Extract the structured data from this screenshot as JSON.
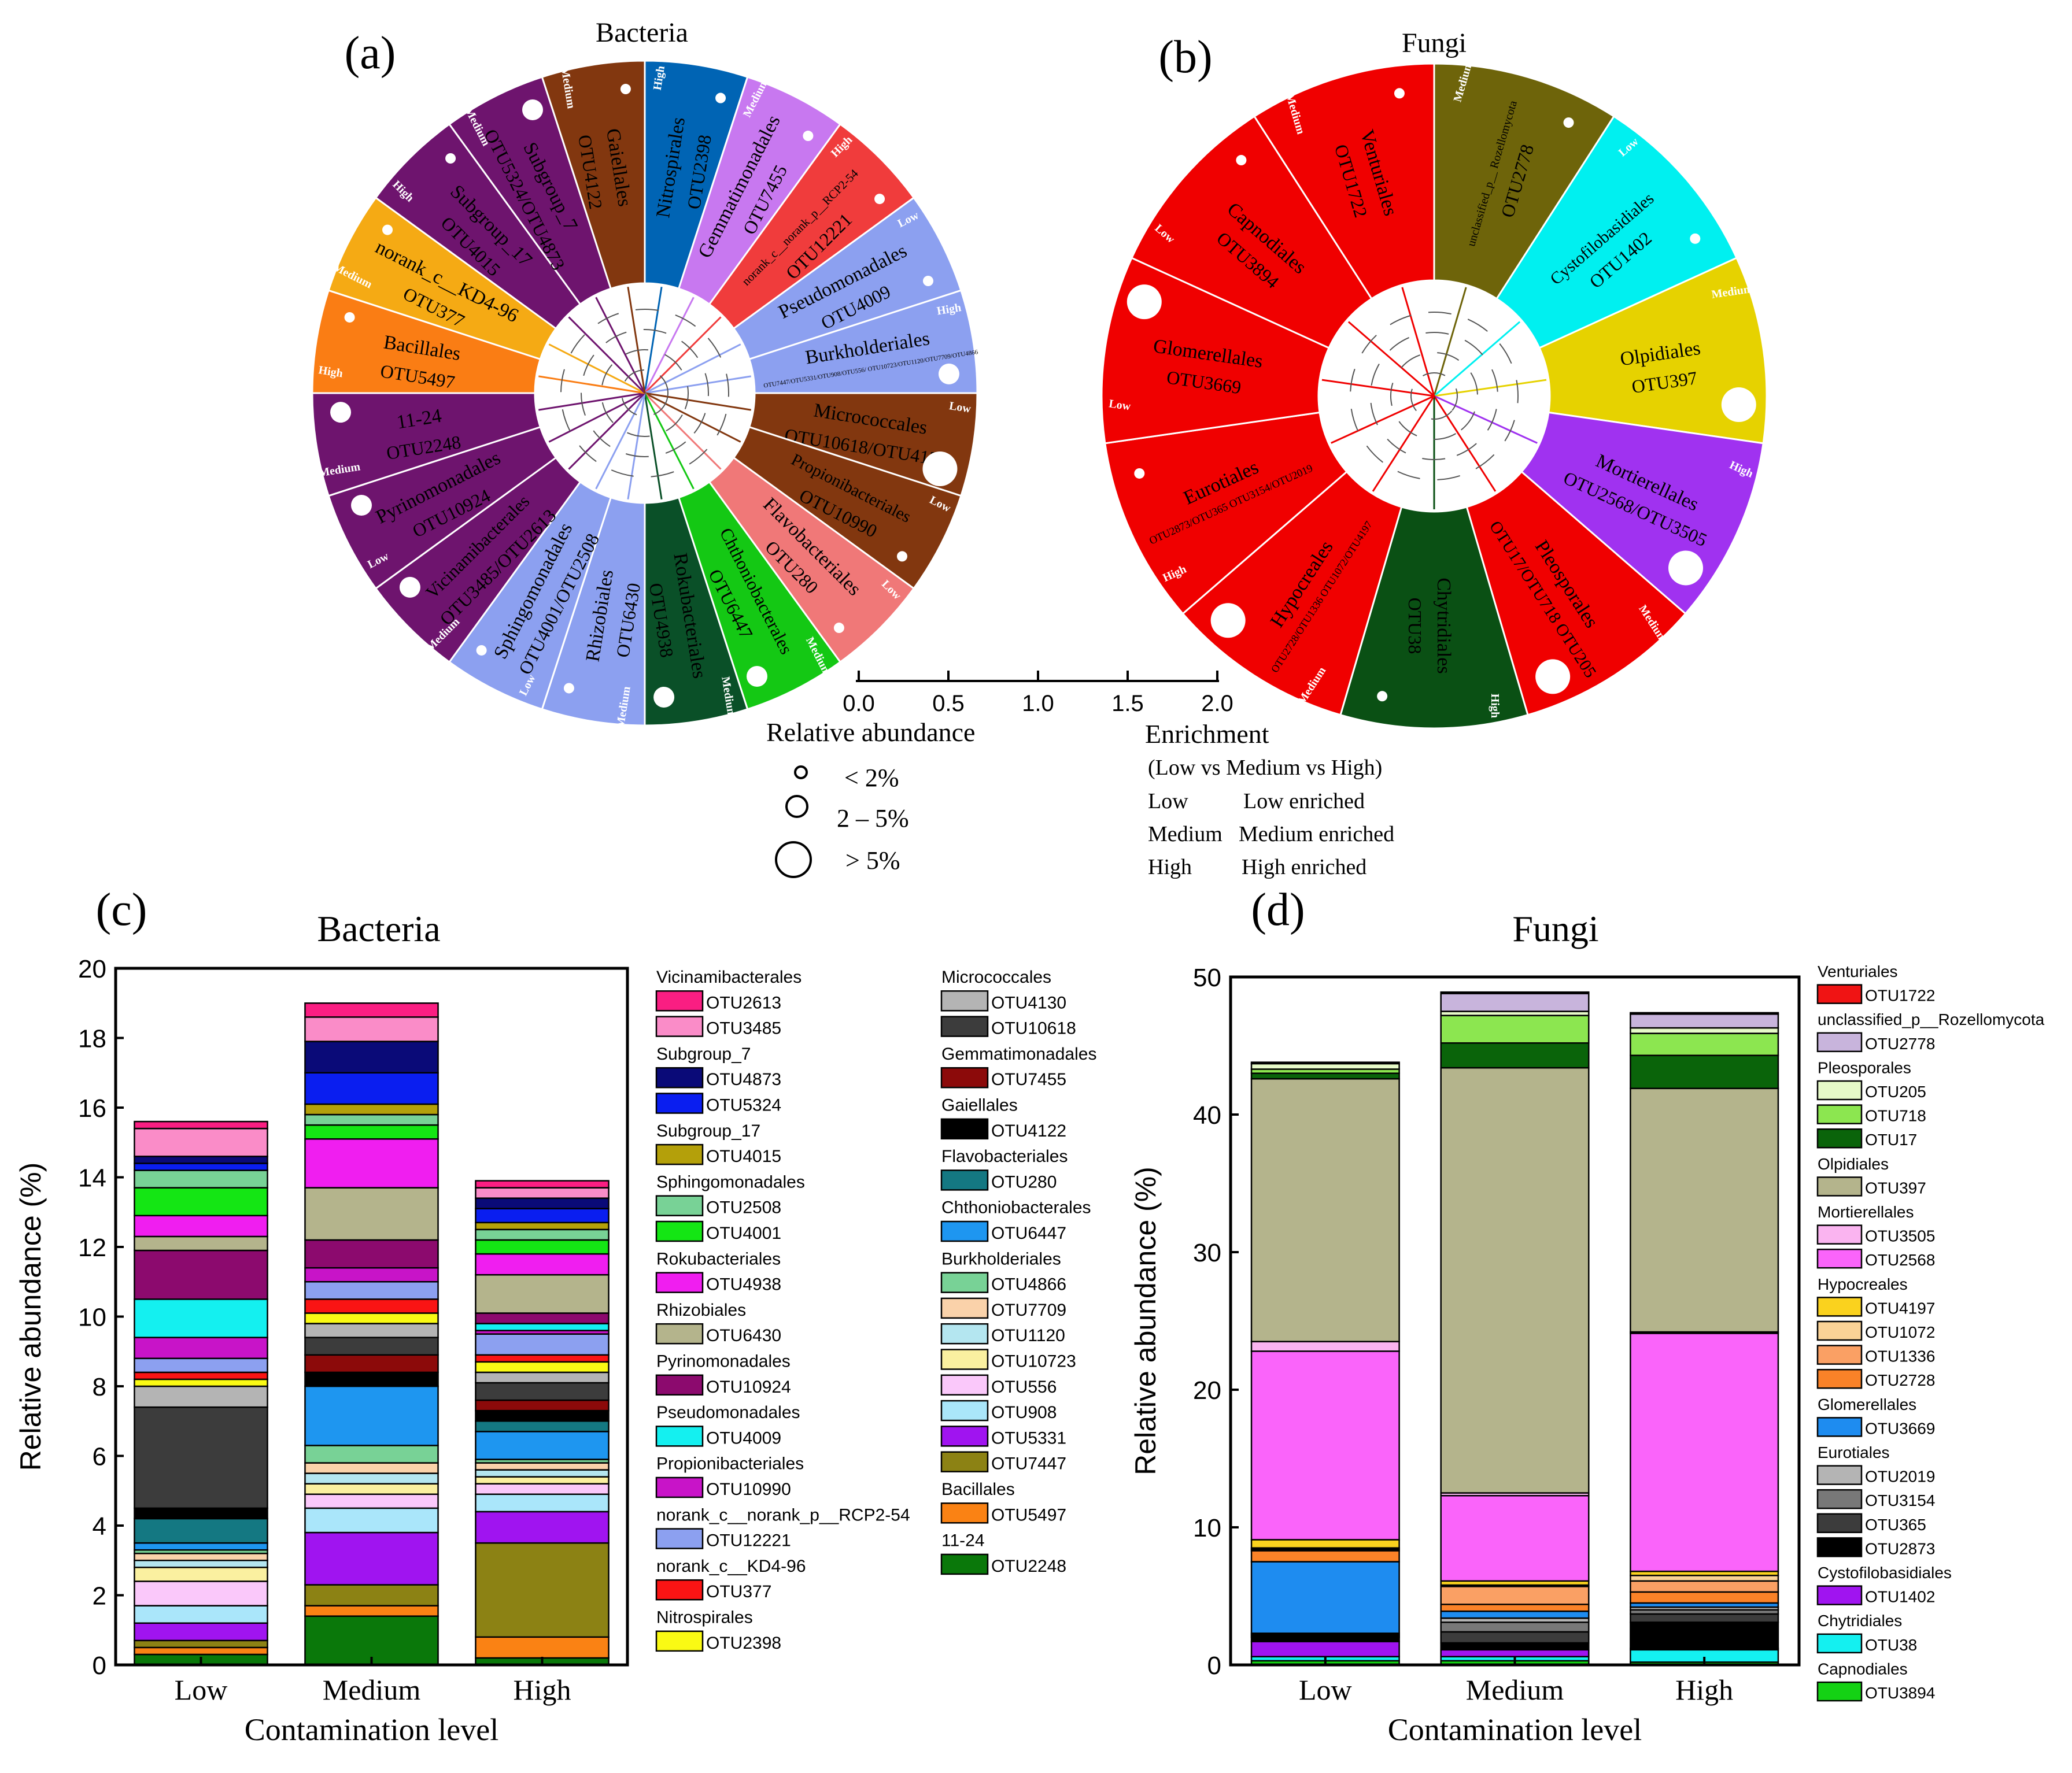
{
  "panels": {
    "a": {
      "label": "(a)",
      "title": "Bacteria"
    },
    "b": {
      "label": "(b)",
      "title": "Fungi"
    },
    "c": {
      "label": "(c)",
      "title": "Bacteria"
    },
    "d": {
      "label": "(d)",
      "title": "Fungi"
    }
  },
  "tree_scale": {
    "ticks": [
      "0.0",
      "0.5",
      "1.0",
      "1.5",
      "2.0"
    ]
  },
  "size_legend": {
    "title": "Relative abundance",
    "items": [
      "< 2%",
      "2 – 5%",
      "> 5%"
    ]
  },
  "enrichment_legend": {
    "title": "Enrichment",
    "subtitle": "(Low vs Medium vs High)",
    "rows": [
      {
        "key": "Low",
        "desc": "Low enriched"
      },
      {
        "key": "Medium",
        "desc": "Medium enriched"
      },
      {
        "key": "High",
        "desc": "High enriched"
      }
    ]
  },
  "circle_bacteria": [
    {
      "order": "Nitrospirales",
      "otu": "OTU2398",
      "enr": "High",
      "size": 1,
      "color": "#0064b4"
    },
    {
      "order": "Gemmatimonadales",
      "otu": "OTU7455",
      "enr": "Medium",
      "size": 1,
      "color": "#c878f0"
    },
    {
      "order": "norank_c__norank_p__RCP2-54",
      "otu": "OTU12221",
      "enr": "High",
      "size": 1,
      "color": "#f03c3c"
    },
    {
      "order": "Pseudomonadales",
      "otu": "OTU4009",
      "enr": "Low",
      "size": 1,
      "color": "#8ca0f0"
    },
    {
      "order": "Burkholderiales",
      "otu": "OTU7447/OTU5331/OTU908/OTU556/ OTU10723/OTU1120/OTU7709/OTU4866",
      "enr": "High",
      "size": 2,
      "color": "#8ca0f0"
    },
    {
      "order": "Micrococcales",
      "otu": "OTU10618/OTU4130",
      "enr": "Low",
      "size": 3,
      "color": "#82370f"
    },
    {
      "order": "Propionibacteriales",
      "otu": "OTU10990",
      "enr": "Low",
      "size": 1,
      "color": "#82370f"
    },
    {
      "order": "Flavobacteriales",
      "otu": "OTU280",
      "enr": "Low",
      "size": 1,
      "color": "#f07878"
    },
    {
      "order": "Chthoniobacterales",
      "otu": "OTU6447",
      "enr": "Medium",
      "size": 2,
      "color": "#14c814"
    },
    {
      "order": "Rokubacteriales",
      "otu": "OTU4938",
      "enr": "Medium",
      "size": 2,
      "color": "#0a5028"
    },
    {
      "order": "Rhizobiales",
      "otu": "OTU6430",
      "enr": "Medium",
      "size": 1,
      "color": "#8ca0f0"
    },
    {
      "order": "Sphingomonadales",
      "otu": "OTU4001/OTU2508",
      "enr": "Low",
      "size": 1,
      "color": "#8ca0f0"
    },
    {
      "order": "Vicinamibacterales",
      "otu": "OTU3485/OTU2613",
      "enr": "Medium",
      "size": 2,
      "color": "#6e146e"
    },
    {
      "order": "Pyrinomonadales",
      "otu": "OTU10924",
      "enr": "Low",
      "size": 2,
      "color": "#6e146e"
    },
    {
      "order": "11-24",
      "otu": "OTU2248",
      "enr": "Medium",
      "size": 2,
      "color": "#6e146e"
    },
    {
      "order": "Bacillales",
      "otu": "OTU5497",
      "enr": "High",
      "size": 1,
      "color": "#fa7d14"
    },
    {
      "order": "norank_c__KD4-96",
      "otu": "OTU377",
      "enr": "Medium",
      "size": 1,
      "color": "#f5aa14"
    },
    {
      "order": "Subgroup_17",
      "otu": "OTU4015",
      "enr": "High",
      "size": 1,
      "color": "#6e146e"
    },
    {
      "order": "Subgroup_7",
      "otu": "OTU5324/OTU4873",
      "enr": "Medium",
      "size": 2,
      "color": "#6e146e"
    },
    {
      "order": "Gaiellales",
      "otu": "OTU4122",
      "enr": "Medium",
      "size": 1,
      "color": "#82370f"
    }
  ],
  "circle_fungi": [
    {
      "order": "unclassified_p__ Rozellomycota",
      "otu": "OTU2778",
      "enr": "Medium",
      "size": 1,
      "color": "#6e640a"
    },
    {
      "order": "Cystofilobasidiales",
      "otu": "OTU1402",
      "enr": "Low",
      "size": 1,
      "color": "#00f0f0"
    },
    {
      "order": "Olpidiales",
      "otu": "OTU397",
      "enr": "Medium",
      "size": 3,
      "color": "#e6d200"
    },
    {
      "order": "Mortierellales",
      "otu": "OTU2568/OTU3505",
      "enr": "High",
      "size": 3,
      "color": "#a032f0"
    },
    {
      "order": "Pleosporales",
      "otu": "OTU17/OTU718 OTU205",
      "enr": "Medium",
      "size": 3,
      "color": "#f00000"
    },
    {
      "order": "Chytridiales",
      "otu": "OTU38",
      "enr": "High",
      "size": 1,
      "color": "#0a5014"
    },
    {
      "order": "Hypocreales",
      "otu": "OTU2728/OTU1336 OTU1072/OTU4197",
      "enr": "Medium",
      "size": 3,
      "color": "#f00000"
    },
    {
      "order": "Eurotiales",
      "otu": "OTU2873/OTU365 OTU3154/OTU2019",
      "enr": "High",
      "size": 1,
      "color": "#f00000"
    },
    {
      "order": "Glomerellales",
      "otu": "OTU3669",
      "enr": "Low",
      "size": 3,
      "color": "#f00000"
    },
    {
      "order": "Capnodiales",
      "otu": "OTU3894",
      "enr": "Low",
      "size": 1,
      "color": "#f00000"
    },
    {
      "order": "Venturiales",
      "otu": "OTU1722",
      "enr": "Medium",
      "size": 1,
      "color": "#f00000"
    }
  ],
  "chart_data": [
    {
      "type": "bar",
      "id": "c",
      "title": "Bacteria",
      "xlabel": "Contamination level",
      "ylabel": "Relative abundance (%)",
      "categories": [
        "Low",
        "Medium",
        "High"
      ],
      "ylim": [
        0,
        20
      ],
      "yticks": [
        0,
        2,
        4,
        6,
        8,
        10,
        12,
        14,
        16,
        18,
        20
      ],
      "series": [
        {
          "name": "OTU2248",
          "color": "#0a780a",
          "values": [
            0.3,
            1.4,
            0.2
          ]
        },
        {
          "name": "OTU5497",
          "color": "#fa8214",
          "values": [
            0.2,
            0.3,
            0.6
          ]
        },
        {
          "name": "OTU7447",
          "color": "#8c8214",
          "values": [
            0.2,
            0.6,
            2.7
          ]
        },
        {
          "name": "OTU5331",
          "color": "#a014f0",
          "values": [
            0.5,
            1.5,
            0.9
          ]
        },
        {
          "name": "OTU908",
          "color": "#aae6fa",
          "values": [
            0.5,
            0.7,
            0.5
          ]
        },
        {
          "name": "OTU556",
          "color": "#fac8fa",
          "values": [
            0.7,
            0.4,
            0.3
          ]
        },
        {
          "name": "OTU10723",
          "color": "#faf0a0",
          "values": [
            0.4,
            0.3,
            0.2
          ]
        },
        {
          "name": "OTU1120",
          "color": "#b4e6f0",
          "values": [
            0.2,
            0.3,
            0.2
          ]
        },
        {
          "name": "OTU7709",
          "color": "#fad2aa",
          "values": [
            0.2,
            0.3,
            0.2
          ]
        },
        {
          "name": "OTU4866",
          "color": "#78d296",
          "values": [
            0.1,
            0.5,
            0.1
          ]
        },
        {
          "name": "OTU6447",
          "color": "#1e96f0",
          "values": [
            0.2,
            1.7,
            0.8
          ]
        },
        {
          "name": "OTU280",
          "color": "#147882",
          "values": [
            0.7,
            0.0,
            0.3
          ]
        },
        {
          "name": "OTU4122",
          "color": "#000000",
          "values": [
            0.3,
            0.4,
            0.3
          ]
        },
        {
          "name": "OTU7455",
          "color": "#8c0a0a",
          "values": [
            0.0,
            0.5,
            0.3
          ]
        },
        {
          "name": "OTU10618",
          "color": "#3c3c3c",
          "values": [
            2.9,
            0.5,
            0.5
          ]
        },
        {
          "name": "OTU4130",
          "color": "#b4b4b4",
          "values": [
            0.6,
            0.4,
            0.3
          ]
        },
        {
          "name": "OTU2398",
          "color": "#fafa14",
          "values": [
            0.2,
            0.3,
            0.3
          ]
        },
        {
          "name": "OTU377",
          "color": "#fa1414",
          "values": [
            0.2,
            0.4,
            0.2
          ]
        },
        {
          "name": "OTU12221",
          "color": "#8ca0f0",
          "values": [
            0.4,
            0.5,
            0.6
          ]
        },
        {
          "name": "OTU10990",
          "color": "#c814c8",
          "values": [
            0.6,
            0.4,
            0.1
          ]
        },
        {
          "name": "OTU4009",
          "color": "#14f0f0",
          "values": [
            1.1,
            0.0,
            0.2
          ]
        },
        {
          "name": "OTU10924",
          "color": "#8c0a6e",
          "values": [
            1.4,
            0.8,
            0.3
          ]
        },
        {
          "name": "OTU6430",
          "color": "#b4b48c",
          "values": [
            0.4,
            1.5,
            1.1
          ]
        },
        {
          "name": "OTU4938",
          "color": "#f01ef0",
          "values": [
            0.6,
            1.4,
            0.6
          ]
        },
        {
          "name": "OTU4001",
          "color": "#14e614",
          "values": [
            0.8,
            0.4,
            0.4
          ]
        },
        {
          "name": "OTU2508",
          "color": "#78d296",
          "values": [
            0.5,
            0.3,
            0.3
          ]
        },
        {
          "name": "OTU4015",
          "color": "#b4a00a",
          "values": [
            0.0,
            0.3,
            0.2
          ]
        },
        {
          "name": "OTU5324",
          "color": "#0a1ef0",
          "values": [
            0.2,
            0.9,
            0.4
          ]
        },
        {
          "name": "OTU4873",
          "color": "#0a0a78",
          "values": [
            0.2,
            0.9,
            0.3
          ]
        },
        {
          "name": "OTU3485",
          "color": "#fa8cc8",
          "values": [
            0.8,
            0.7,
            0.3
          ]
        },
        {
          "name": "OTU2613",
          "color": "#fa1e82",
          "values": [
            0.2,
            0.4,
            0.2
          ]
        }
      ],
      "legend": [
        [
          {
            "group": "Vicinamibacterales",
            "items": [
              "OTU2613",
              "OTU3485"
            ]
          },
          {
            "group": "Subgroup_7",
            "items": [
              "OTU4873",
              "OTU5324"
            ]
          },
          {
            "group": "Subgroup_17",
            "items": [
              "OTU4015"
            ]
          },
          {
            "group": "Sphingomonadales",
            "items": [
              "OTU2508",
              "OTU4001"
            ]
          },
          {
            "group": "Rokubacteriales",
            "items": [
              "OTU4938"
            ]
          },
          {
            "group": "Rhizobiales",
            "items": [
              "OTU6430"
            ]
          },
          {
            "group": "Pyrinomonadales",
            "items": [
              "OTU10924"
            ]
          },
          {
            "group": "Pseudomonadales",
            "items": [
              "OTU4009"
            ]
          },
          {
            "group": "Propionibacteriales",
            "items": [
              "OTU10990"
            ]
          },
          {
            "group": "norank_c__norank_p__RCP2-54",
            "items": [
              "OTU12221"
            ]
          },
          {
            "group": "norank_c__KD4-96",
            "items": [
              "OTU377"
            ]
          },
          {
            "group": "Nitrospirales",
            "items": [
              "OTU2398"
            ]
          }
        ],
        [
          {
            "group": "Micrococcales",
            "items": [
              "OTU4130",
              "OTU10618"
            ]
          },
          {
            "group": "Gemmatimonadales",
            "items": [
              "OTU7455"
            ]
          },
          {
            "group": "Gaiellales",
            "items": [
              "OTU4122"
            ]
          },
          {
            "group": "Flavobacteriales",
            "items": [
              "OTU280"
            ]
          },
          {
            "group": "Chthoniobacterales",
            "items": [
              "OTU6447"
            ]
          },
          {
            "group": "Burkholderiales",
            "items": [
              "OTU4866",
              "OTU7709",
              "OTU1120",
              "OTU10723",
              "OTU556",
              "OTU908",
              "OTU5331",
              "OTU7447"
            ]
          },
          {
            "group": "Bacillales",
            "items": [
              "OTU5497"
            ]
          },
          {
            "group": "11-24",
            "items": [
              "OTU2248"
            ]
          }
        ]
      ]
    },
    {
      "type": "bar",
      "id": "d",
      "title": "Fungi",
      "xlabel": "Contamination level",
      "ylabel": "Relative abundance (%)",
      "categories": [
        "Low",
        "Medium",
        "High"
      ],
      "ylim": [
        0,
        50
      ],
      "yticks": [
        0,
        10,
        20,
        30,
        40,
        50
      ],
      "series": [
        {
          "name": "OTU3894",
          "color": "#14d214",
          "values": [
            0.3,
            0.3,
            0.2
          ]
        },
        {
          "name": "OTU38",
          "color": "#14f0f0",
          "values": [
            0.3,
            0.3,
            0.9
          ]
        },
        {
          "name": "OTU1402",
          "color": "#a014f0",
          "values": [
            1.1,
            0.5,
            0.1
          ]
        },
        {
          "name": "OTU2873",
          "color": "#000000",
          "values": [
            0.3,
            0.5,
            1.9
          ]
        },
        {
          "name": "OTU365",
          "color": "#3c3c3c",
          "values": [
            0.1,
            0.8,
            0.6
          ]
        },
        {
          "name": "OTU3154",
          "color": "#787878",
          "values": [
            0.1,
            0.7,
            0.3
          ]
        },
        {
          "name": "OTU2019",
          "color": "#b4b4b4",
          "values": [
            0.1,
            0.3,
            0.2
          ]
        },
        {
          "name": "OTU3669",
          "color": "#1e8cf0",
          "values": [
            5.2,
            0.5,
            0.3
          ]
        },
        {
          "name": "OTU2728",
          "color": "#fa8228",
          "values": [
            0.8,
            0.5,
            0.8
          ]
        },
        {
          "name": "OTU1336",
          "color": "#faa064",
          "values": [
            0.1,
            1.3,
            0.8
          ]
        },
        {
          "name": "OTU1072",
          "color": "#fad296",
          "values": [
            0.1,
            0.1,
            0.4
          ]
        },
        {
          "name": "OTU4197",
          "color": "#fad21e",
          "values": [
            0.6,
            0.3,
            0.3
          ]
        },
        {
          "name": "OTU2568",
          "color": "#fa64fa",
          "values": [
            13.7,
            6.2,
            17.3
          ]
        },
        {
          "name": "OTU3505",
          "color": "#fab4f0",
          "values": [
            0.7,
            0.2,
            0.1
          ]
        },
        {
          "name": "OTU397",
          "color": "#b4b48c",
          "values": [
            19.1,
            30.9,
            17.7
          ]
        },
        {
          "name": "OTU17",
          "color": "#0a640a",
          "values": [
            0.4,
            1.8,
            2.4
          ]
        },
        {
          "name": "OTU718",
          "color": "#8ce650",
          "values": [
            0.3,
            2.0,
            1.6
          ]
        },
        {
          "name": "OTU205",
          "color": "#e6fac8",
          "values": [
            0.4,
            0.3,
            0.4
          ]
        },
        {
          "name": "OTU2778",
          "color": "#c8b4dc",
          "values": [
            0.0,
            1.3,
            1.0
          ]
        },
        {
          "name": "OTU1722",
          "color": "#f01414",
          "values": [
            0.1,
            0.1,
            0.1
          ]
        }
      ],
      "legend": [
        [
          {
            "group": "Venturiales",
            "items": [
              "OTU1722"
            ]
          },
          {
            "group": "unclassified_p__Rozellomycota",
            "items": [
              "OTU2778"
            ]
          },
          {
            "group": "Pleosporales",
            "items": [
              "OTU205",
              "OTU718",
              "OTU17"
            ]
          },
          {
            "group": "Olpidiales",
            "items": [
              "OTU397"
            ]
          },
          {
            "group": "Mortierellales",
            "items": [
              "OTU3505",
              "OTU2568"
            ]
          },
          {
            "group": "Hypocreales",
            "items": [
              "OTU4197",
              "OTU1072",
              "OTU1336",
              "OTU2728"
            ]
          },
          {
            "group": "Glomerellales",
            "items": [
              "OTU3669"
            ]
          },
          {
            "group": "Eurotiales",
            "items": [
              "OTU2019",
              "OTU3154",
              "OTU365",
              "OTU2873"
            ]
          },
          {
            "group": "Cystofilobasidiales",
            "items": [
              "OTU1402"
            ]
          },
          {
            "group": "Chytridiales",
            "items": [
              "OTU38"
            ]
          },
          {
            "group": "Capnodiales",
            "items": [
              "OTU3894"
            ]
          }
        ]
      ]
    }
  ]
}
